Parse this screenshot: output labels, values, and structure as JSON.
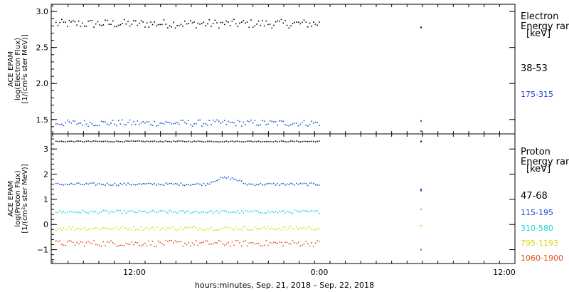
{
  "chart_data": [
    {
      "type": "scatter",
      "panel": "electron",
      "ylabel_lines": [
        "ACE EPAM",
        "log(Electron Flux)",
        "[1/(cm²s ster MeV)]"
      ],
      "ylim": [
        1.3,
        3.1
      ],
      "yticks": [
        1.5,
        2.0,
        2.5,
        3.0
      ],
      "ytick_labels": [
        "1.5",
        "2.0",
        "2.5",
        "3.0"
      ],
      "legend_title_lines": [
        "Electron",
        "Energy ran",
        "[keV]"
      ],
      "series": [
        {
          "name": "38-53",
          "color": "#000000",
          "base": 2.83,
          "noise": 0.06,
          "late_points": [
            2.78
          ]
        },
        {
          "name": "175-315",
          "color": "#1a4fd0",
          "base": 1.45,
          "noise": 0.045,
          "late_points": [
            1.48,
            1.34
          ]
        }
      ]
    },
    {
      "type": "scatter",
      "panel": "proton",
      "ylabel_lines": [
        "ACE EPAM",
        "log(Proton Flux)",
        "[1/(cm²s ster MeV)]"
      ],
      "ylim": [
        -1.55,
        3.6
      ],
      "yticks": [
        -1,
        0,
        1,
        2,
        3
      ],
      "ytick_labels": [
        "−1",
        "0",
        "1",
        "2",
        "3"
      ],
      "legend_title_lines": [
        "Proton",
        "Energy ran",
        "[keV]"
      ],
      "series": [
        {
          "name": "47-68",
          "color": "#000000",
          "base": 3.3,
          "noise": 0.02,
          "late_points": [
            3.3
          ]
        },
        {
          "name": "115-195",
          "color": "#1a4fd0",
          "base": 1.6,
          "noise": 0.05,
          "late_points": [
            1.35,
            1.4
          ]
        },
        {
          "name": "310-580",
          "color": "#1fd4d4",
          "base": 0.5,
          "noise": 0.06,
          "late_points": [
            0.6
          ]
        },
        {
          "name": "795-1193",
          "color": "#d8d81a",
          "base": -0.15,
          "noise": 0.08,
          "late_points": [
            -0.05
          ]
        },
        {
          "name": "1060-1900",
          "color": "#e0541e",
          "base": -0.75,
          "noise": 0.12,
          "late_points": [
            -1.0
          ]
        }
      ]
    }
  ],
  "x_axis": {
    "label": "hours:minutes, Sep. 21, 2018 – Sep. 22, 2018",
    "ticks": [
      "12:00",
      "0:00",
      "12:00"
    ]
  }
}
